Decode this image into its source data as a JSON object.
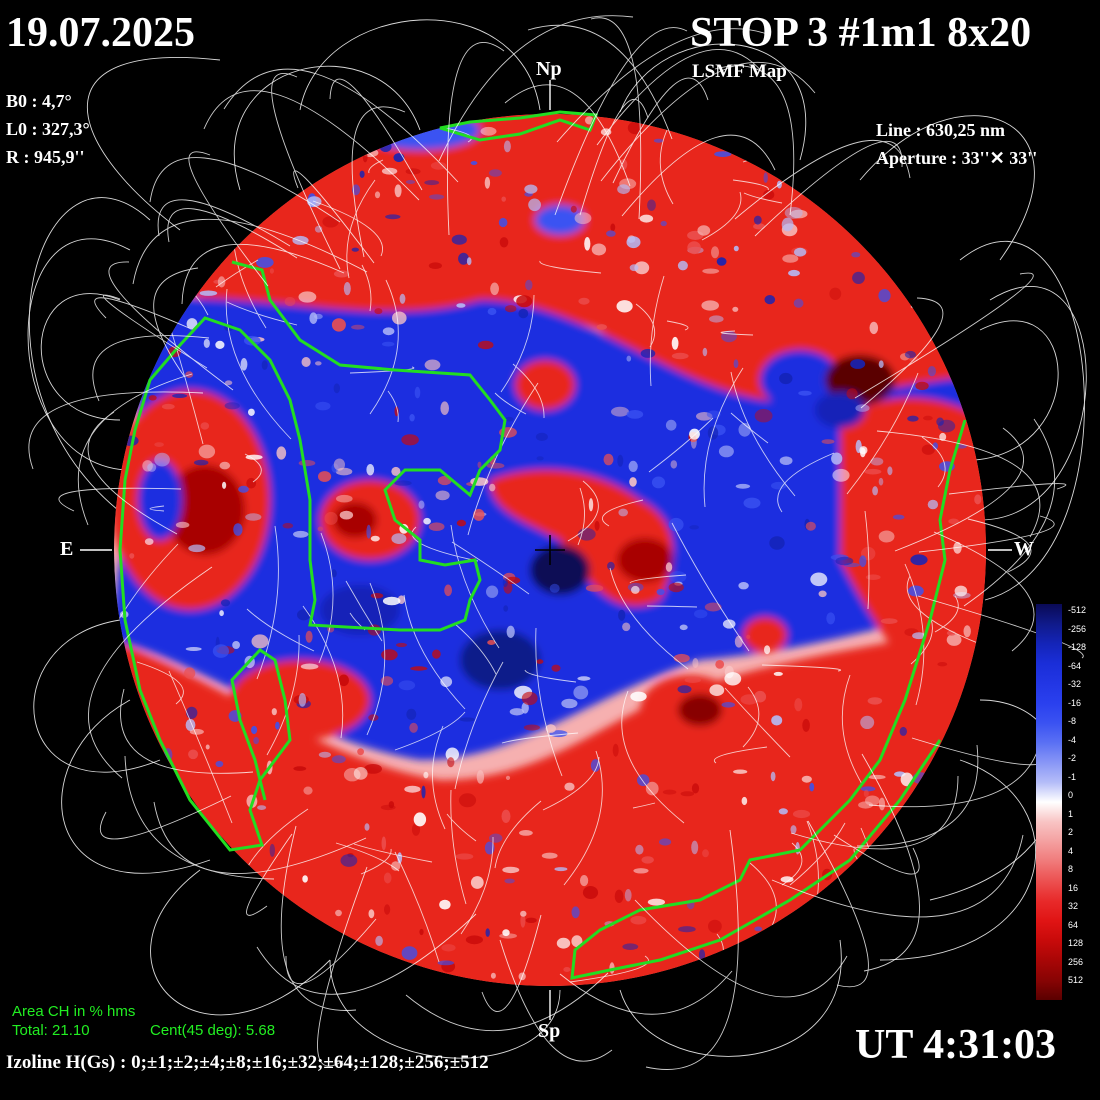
{
  "header": {
    "date": "19.07.2025",
    "title": "STOP 3 #1m1 8x20",
    "subtitle": "LSMF  Map"
  },
  "params": {
    "b0": "B0 : 4,7°",
    "l0": "L0 : 327,3°",
    "r": "R  : 945,9''",
    "line": "Line :  630,25 nm",
    "aperture": "Aperture : 33''✕ 33''"
  },
  "axes": {
    "north": "Np",
    "south": "Sp",
    "east": "E",
    "west": "W"
  },
  "coronal_hole": {
    "title": "Area CH in % hms",
    "total": "Total: 21.10",
    "central": "Cent(45 deg): 5.68"
  },
  "isolines": "Izoline H(Gs) : 0;±1;±2;±4;±8;±16;±32;±64;±128;±256;±512",
  "time": "UT 4:31:03",
  "colorbar": {
    "labels": [
      "-512",
      "-256",
      "-128",
      "-64",
      "-32",
      "-16",
      "-8",
      "-4",
      "-2",
      "-1",
      "0",
      "1",
      "2",
      "4",
      "8",
      "16",
      "32",
      "64",
      "128",
      "256",
      "512"
    ],
    "colors": [
      "#0a0a55",
      "#101a8a",
      "#1424b8",
      "#1a2ed8",
      "#2236e4",
      "#2a40ee",
      "#3a52f2",
      "#5a70f4",
      "#8896f6",
      "#b4bcf8",
      "#ffffff",
      "#f8c4c4",
      "#f4a0a0",
      "#f07a7a",
      "#ec5050",
      "#e82a2a",
      "#e01414",
      "#c80a0a",
      "#a80606",
      "#880404",
      "#5a0000"
    ]
  },
  "palette": {
    "positive": "#e8231f",
    "negative": "#1a2ee0",
    "ch_contour": "#22dd22",
    "field_lines": "#ffffff"
  }
}
